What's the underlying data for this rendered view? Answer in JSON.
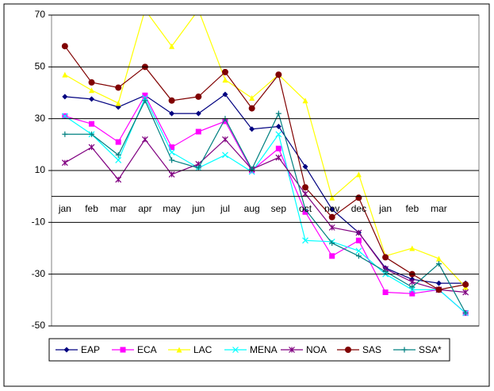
{
  "chart_data": {
    "type": "line",
    "categories": [
      "jan",
      "feb",
      "mar",
      "apr",
      "may",
      "jun",
      "jul",
      "aug",
      "sep",
      "oct",
      "nov",
      "dec",
      "jan",
      "feb",
      "mar",
      null
    ],
    "ylim": [
      -50,
      70
    ],
    "yticks": [
      -50,
      -30,
      -10,
      10,
      30,
      50,
      70
    ],
    "grid": true,
    "legend": "bottom",
    "series": [
      {
        "name": "EAP",
        "color": "#000080",
        "marker": "diamond",
        "values": [
          38.5,
          37.6,
          34.5,
          39,
          32,
          32,
          39.4,
          26,
          27,
          11.5,
          -5,
          -14,
          -27.6,
          -32,
          -33.5,
          -33.5
        ]
      },
      {
        "name": "ECA",
        "color": "#ff00ff",
        "marker": "square",
        "values": [
          31,
          28,
          21,
          39,
          19,
          25,
          29,
          10,
          18.5,
          -6,
          -23,
          -17,
          -37,
          -37.5,
          -36,
          -45
        ]
      },
      {
        "name": "LAC",
        "color": "#ffff00",
        "marker": "triangle",
        "values": [
          47,
          41,
          36,
          72,
          58,
          72,
          45,
          38,
          47,
          37,
          -0.5,
          8.5,
          -23,
          -20,
          -24,
          -35
        ]
      },
      {
        "name": "MENA",
        "color": "#00ffff",
        "marker": "x",
        "values": [
          31,
          24,
          14,
          38,
          17,
          11,
          16,
          9.5,
          24,
          -17,
          -17.5,
          -21,
          -30,
          -36,
          -36,
          -45
        ]
      },
      {
        "name": "NOA",
        "color": "#800080",
        "marker": "star",
        "values": [
          13,
          19,
          6.5,
          22,
          8.5,
          12.5,
          22,
          10.5,
          15,
          1,
          -12,
          -14,
          -28,
          -33,
          -36,
          -37
        ]
      },
      {
        "name": "SAS",
        "color": "#800000",
        "marker": "circle",
        "values": [
          58,
          44,
          42,
          50,
          37,
          38.5,
          48,
          34,
          47,
          3.5,
          -8,
          -0.5,
          -23.5,
          -30,
          -36,
          -34
        ]
      },
      {
        "name": "SSA*",
        "color": "#008080",
        "marker": "plus",
        "values": [
          24,
          24,
          16,
          37,
          14,
          11,
          30,
          10.5,
          32,
          -5,
          -18,
          -23,
          -29,
          -35,
          -26,
          -45
        ]
      }
    ]
  }
}
